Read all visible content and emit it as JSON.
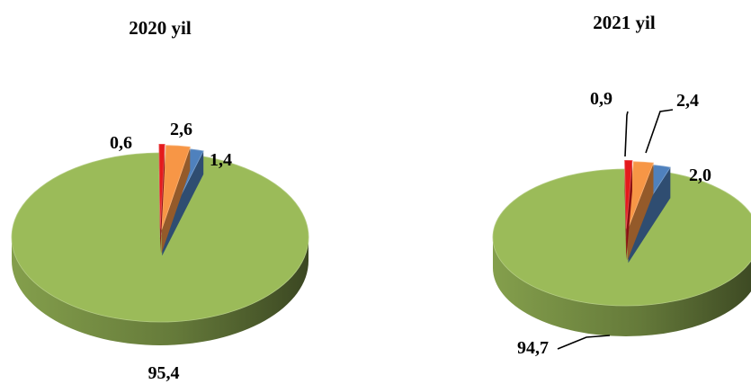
{
  "chart_data": [
    {
      "type": "pie",
      "title": "2020 yil",
      "slices": [
        {
          "value": 95.4,
          "label": "95,4",
          "color": "#9BBB59"
        },
        {
          "value": 1.4,
          "label": "1,4",
          "color": "#4F81BD"
        },
        {
          "value": 2.6,
          "label": "2,6",
          "color": "#F79646"
        },
        {
          "value": 0.6,
          "label": "0,6",
          "color": "#E41A1C"
        }
      ],
      "style": "3d-exploded",
      "legend": "none"
    },
    {
      "type": "pie",
      "title": "2021 yil",
      "slices": [
        {
          "value": 94.7,
          "label": "94,7",
          "color": "#9BBB59"
        },
        {
          "value": 2.0,
          "label": "2,0",
          "color": "#4F81BD"
        },
        {
          "value": 2.4,
          "label": "2,4",
          "color": "#F79646"
        },
        {
          "value": 0.9,
          "label": "0,9",
          "color": "#E41A1C"
        }
      ],
      "style": "3d-exploded",
      "legend": "none"
    }
  ]
}
